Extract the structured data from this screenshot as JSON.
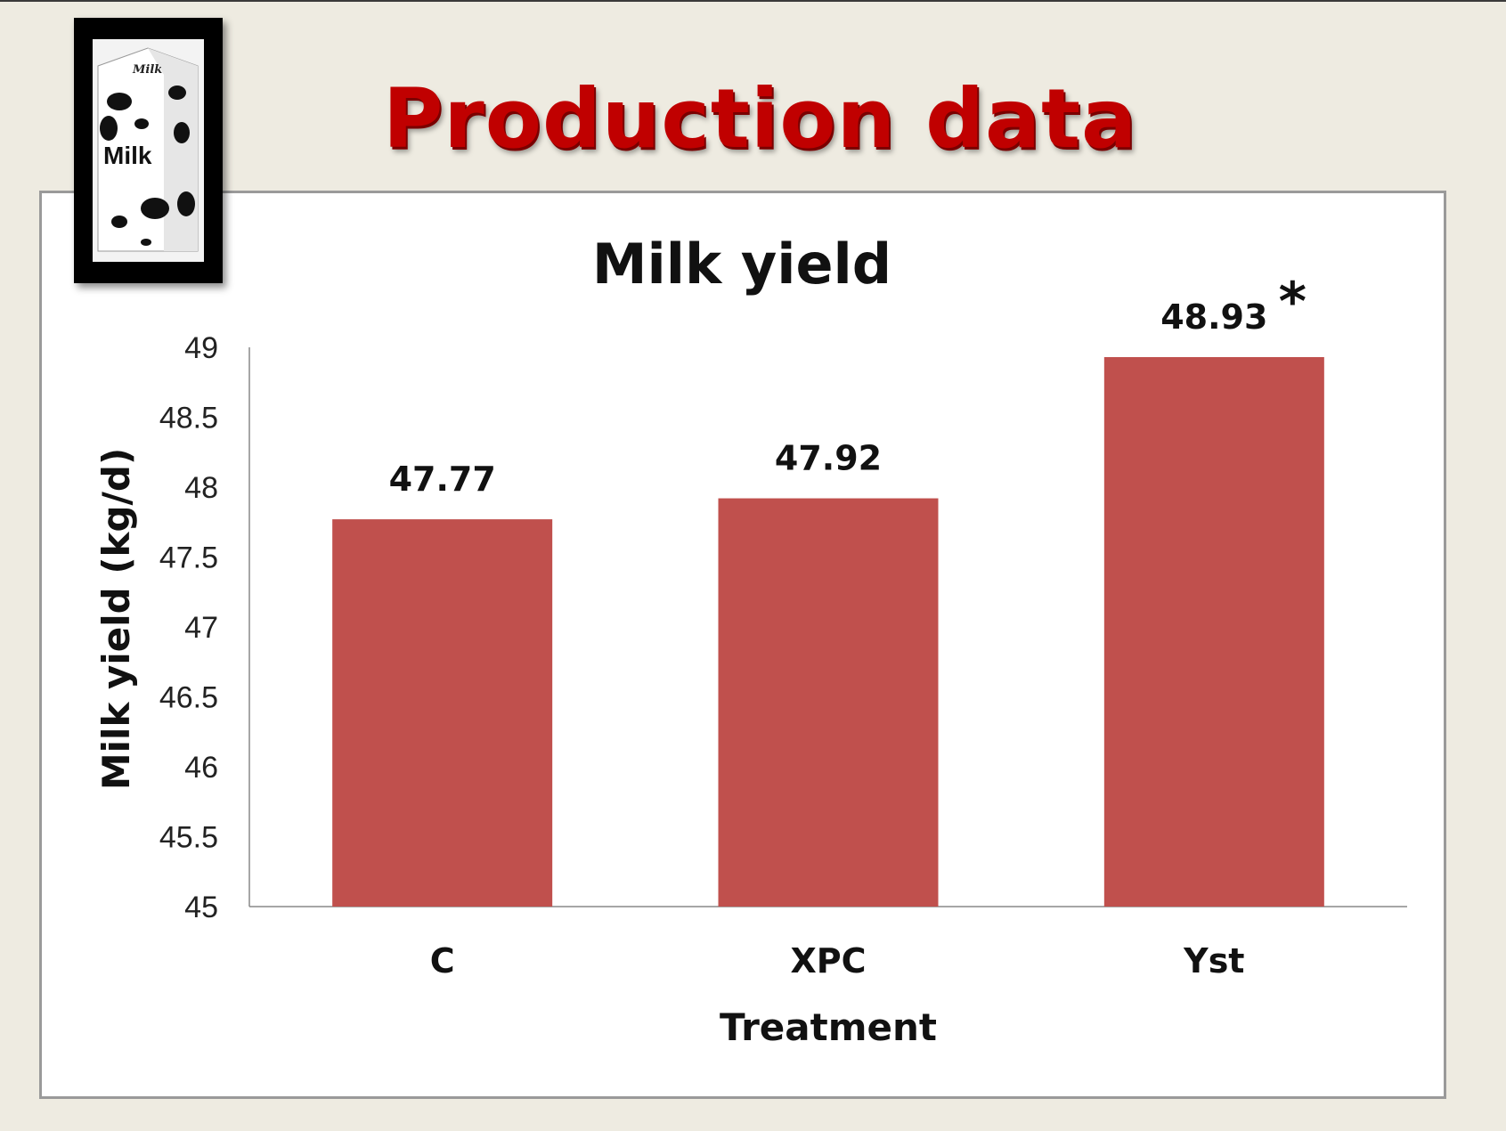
{
  "slide": {
    "title": "Production data"
  },
  "logo": {
    "icon": "milk-carton-icon",
    "carton_text_top": "Milk",
    "carton_text_main": "Milk"
  },
  "colors": {
    "bar": "#c0504d",
    "title_red": "#c00000",
    "background": "#eeebe1"
  },
  "chart_data": {
    "type": "bar",
    "title": "Milk yield",
    "xlabel": "Treatment",
    "ylabel": "Milk yield (kg/d)",
    "categories": [
      "C",
      "XPC",
      "Yst"
    ],
    "values": [
      47.77,
      47.92,
      48.93
    ],
    "data_labels": [
      "47.77",
      "47.92",
      "48.93"
    ],
    "yticks": [
      "45",
      "45.5",
      "46",
      "46.5",
      "47",
      "47.5",
      "48",
      "48.5",
      "49"
    ],
    "ylim": [
      45,
      49
    ],
    "grid": false,
    "legend": "none",
    "annotations": [
      {
        "category": "Yst",
        "text": "*"
      }
    ]
  }
}
